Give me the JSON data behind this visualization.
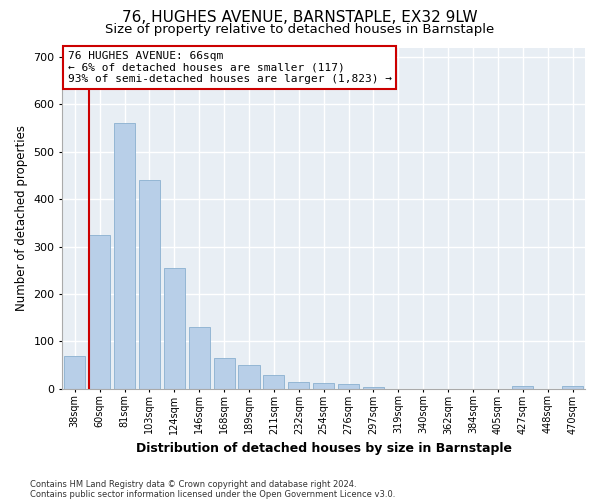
{
  "title1": "76, HUGHES AVENUE, BARNSTAPLE, EX32 9LW",
  "title2": "Size of property relative to detached houses in Barnstaple",
  "xlabel": "Distribution of detached houses by size in Barnstaple",
  "ylabel": "Number of detached properties",
  "categories": [
    "38sqm",
    "60sqm",
    "81sqm",
    "103sqm",
    "124sqm",
    "146sqm",
    "168sqm",
    "189sqm",
    "211sqm",
    "232sqm",
    "254sqm",
    "276sqm",
    "297sqm",
    "319sqm",
    "340sqm",
    "362sqm",
    "384sqm",
    "405sqm",
    "427sqm",
    "448sqm",
    "470sqm"
  ],
  "values": [
    70,
    325,
    560,
    440,
    255,
    130,
    65,
    50,
    30,
    15,
    12,
    10,
    3,
    0,
    0,
    0,
    0,
    0,
    5,
    0,
    5
  ],
  "bar_color": "#b8cfe8",
  "bar_edge_color": "#8ab0d0",
  "highlight_color": "#cc0000",
  "annotation_line1": "76 HUGHES AVENUE: 66sqm",
  "annotation_line2": "← 6% of detached houses are smaller (117)",
  "annotation_line3": "93% of semi-detached houses are larger (1,823) →",
  "ylim": [
    0,
    720
  ],
  "yticks": [
    0,
    100,
    200,
    300,
    400,
    500,
    600,
    700
  ],
  "bg_color": "#e8eef4",
  "footer_text": "Contains HM Land Registry data © Crown copyright and database right 2024.\nContains public sector information licensed under the Open Government Licence v3.0.",
  "property_bin_index": 1,
  "title1_fontsize": 11,
  "title2_fontsize": 9.5
}
